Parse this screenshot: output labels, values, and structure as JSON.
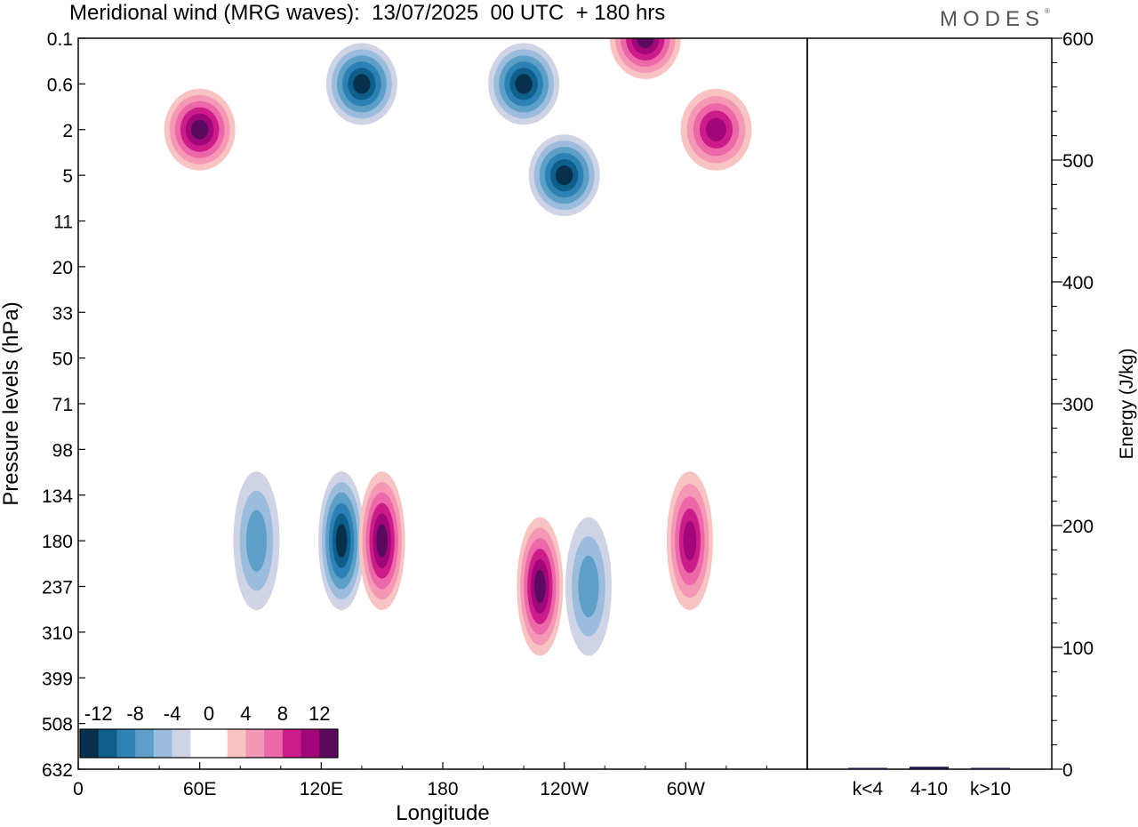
{
  "header": {
    "title": "Meridional wind (MRG waves):  13/07/2025  00 UTC  + 180 hrs",
    "logo": "MODES",
    "logo_mark": "®"
  },
  "chart_data": [
    {
      "type": "heatmap",
      "title": "Meridional wind (MRG waves):  13/07/2025  00 UTC  + 180 hrs",
      "xlabel": "Longitude",
      "ylabel": "Pressure levels (hPa)",
      "x_ticks": [
        "0",
        "60E",
        "120E",
        "180",
        "120W",
        "60W"
      ],
      "y_ticks": [
        "0.1",
        "0.6",
        "2",
        "5",
        "11",
        "20",
        "33",
        "50",
        "71",
        "98",
        "134",
        "180",
        "237",
        "310",
        "399",
        "508",
        "632"
      ],
      "colorbar": {
        "labels": [
          "-12",
          "-8",
          "-4",
          "0",
          "4",
          "8",
          "12"
        ],
        "colors": [
          "#06304b",
          "#0e5f8c",
          "#2c82b5",
          "#5d9fc6",
          "#9bbcdc",
          "#cfd3e6",
          "#ffffff",
          "#ffffff",
          "#f8c3c3",
          "#f598b5",
          "#ec68a8",
          "#cb1c8a",
          "#a1067a",
          "#5b0a60"
        ]
      },
      "features": [
        {
          "sign": "negative",
          "lon": 130,
          "level": "180",
          "peak": -14
        },
        {
          "sign": "positive",
          "lon": 150,
          "level": "180",
          "peak": 14
        },
        {
          "sign": "positive",
          "lon": 228,
          "level": "237",
          "peak": 16
        },
        {
          "sign": "negative",
          "lon": 252,
          "level": "237",
          "peak": -8
        },
        {
          "sign": "positive",
          "lon": 302,
          "level": "180",
          "peak": 12
        },
        {
          "sign": "negative",
          "lon": 88,
          "level": "180",
          "peak": -8
        },
        {
          "sign": "negative",
          "lon": 240,
          "level": "5",
          "peak": -14
        },
        {
          "sign": "negative",
          "lon": 220,
          "level": "0.6",
          "peak": -14
        },
        {
          "sign": "negative",
          "lon": 140,
          "level": "0.6",
          "peak": -14
        },
        {
          "sign": "positive",
          "lon": 60,
          "level": "2",
          "peak": 14
        },
        {
          "sign": "positive",
          "lon": 280,
          "level": "0.1",
          "peak": 14
        },
        {
          "sign": "positive",
          "lon": 315,
          "level": "2",
          "peak": 12
        }
      ]
    },
    {
      "type": "bar",
      "ylabel": "Energy (J/kg)",
      "categories": [
        "k<4",
        "4-10",
        "k>10"
      ],
      "values": [
        1,
        2,
        1
      ],
      "ylim": [
        0,
        600
      ],
      "y_ticks": [
        "0",
        "100",
        "200",
        "300",
        "400",
        "500",
        "600"
      ],
      "bar_color": "#1a1a4a"
    }
  ]
}
